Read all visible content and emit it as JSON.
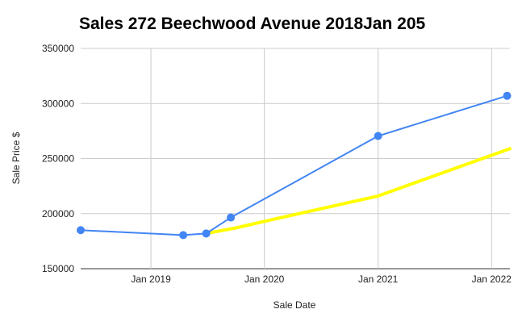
{
  "chart_data": {
    "type": "line",
    "title": "Sales 272 Beechwood Avenue 2018Jan 205",
    "xlabel": "Sale Date",
    "ylabel": "Sale Price $",
    "xlim": [
      "2018-05-20",
      "2022-03-01"
    ],
    "ylim": [
      150000,
      350000
    ],
    "grid": true,
    "y_ticks": [
      150000,
      200000,
      250000,
      300000,
      350000
    ],
    "x_ticks": [
      {
        "date": "2019-01-01",
        "label": "Jan 2019"
      },
      {
        "date": "2020-01-01",
        "label": "Jan 2020"
      },
      {
        "date": "2021-01-01",
        "label": "Jan 2021"
      },
      {
        "date": "2022-01-01",
        "label": "Jan 2022"
      }
    ],
    "series": [
      {
        "color": "#4285f4",
        "markers": true,
        "points": [
          {
            "x": "2018-05-20",
            "y": 185000
          },
          {
            "x": "2019-04-15",
            "y": 180500
          },
          {
            "x": "2019-06-28",
            "y": 182000
          },
          {
            "x": "2019-09-15",
            "y": 196500
          },
          {
            "x": "2021-01-01",
            "y": 270500
          },
          {
            "x": "2022-02-20",
            "y": 307000
          }
        ]
      },
      {
        "color": "#ffff00",
        "markers": false,
        "points": [
          {
            "x": "2019-06-28",
            "y": 182000
          },
          {
            "x": "2019-10-01",
            "y": 187000
          },
          {
            "x": "2020-01-01",
            "y": 193000
          },
          {
            "x": "2021-01-01",
            "y": 216000
          },
          {
            "x": "2022-03-01",
            "y": 259000
          }
        ]
      }
    ]
  }
}
